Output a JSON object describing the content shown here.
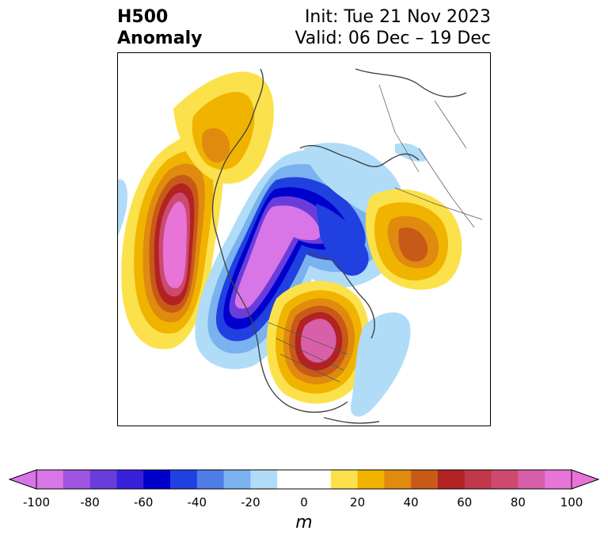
{
  "title": {
    "line1_left": "H500",
    "line2_left": "Anomaly",
    "line1_right": "Init: Tue 21 Nov 2023",
    "line2_right": "Valid: 06 Dec – 19 Dec"
  },
  "colorbar": {
    "unit": "m",
    "ticks": [
      "-100",
      "-80",
      "-60",
      "-40",
      "-20",
      "0",
      "20",
      "40",
      "60",
      "80",
      "100"
    ],
    "range": [
      -100,
      100
    ],
    "colors": [
      "#d876e8",
      "#a055e0",
      "#6a3ddb",
      "#3a1fd9",
      "#0000cd",
      "#2040e0",
      "#4f7de8",
      "#7ab2f0",
      "#b0dcf8",
      "#ffffff",
      "#ffffff",
      "#fbe24c",
      "#f0b400",
      "#e08a10",
      "#c85a18",
      "#b22222",
      "#c0384a",
      "#cc4a70",
      "#d860a8",
      "#e874d8"
    ]
  },
  "map": {
    "colors": {
      "coast": "#444444",
      "border": "#555555"
    }
  }
}
